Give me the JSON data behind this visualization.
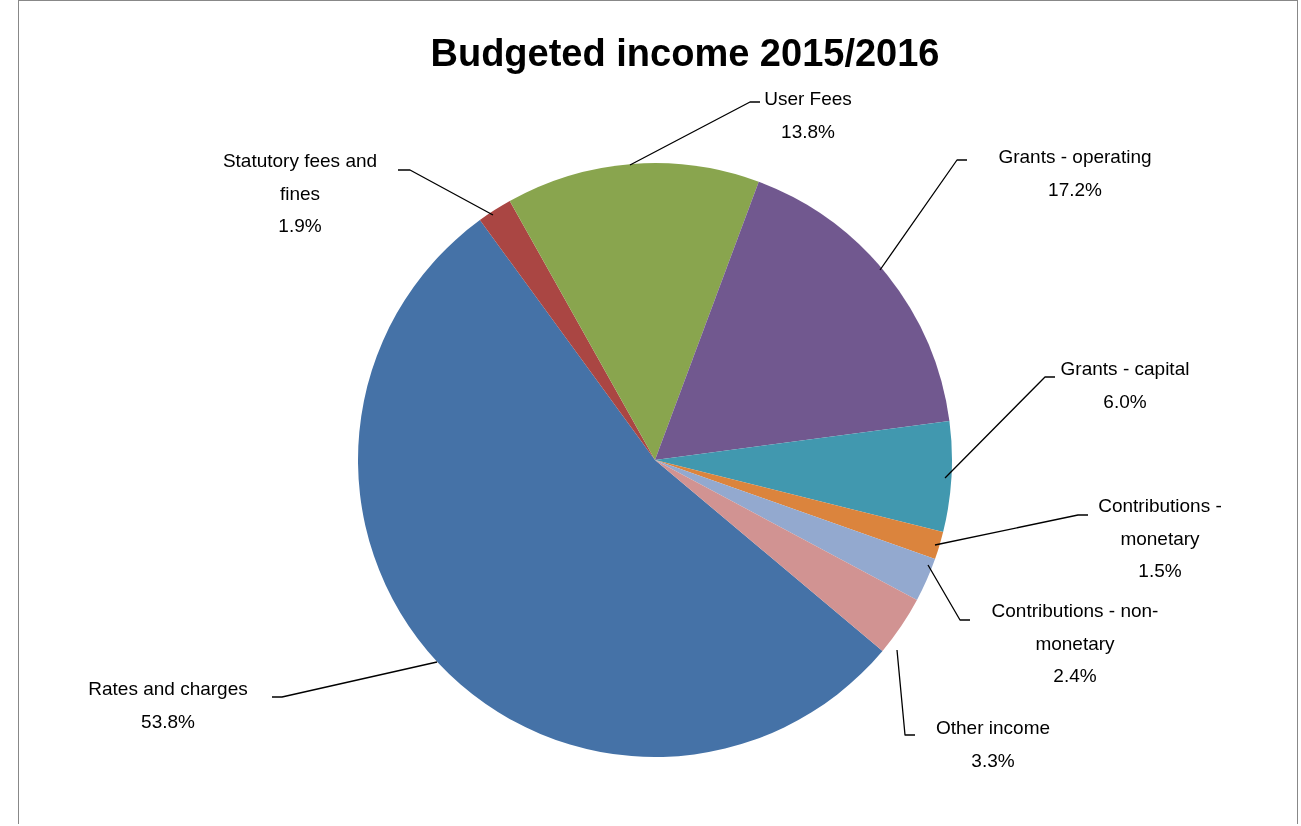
{
  "chart_data": {
    "type": "pie",
    "title": "Budgeted income 2015/2016",
    "categories": [
      "Rates and charges",
      "Statutory fees and fines",
      "User Fees",
      "Grants - operating",
      "Grants - capital",
      "Contributions - monetary",
      "Contributions - non-monetary",
      "Other income"
    ],
    "values": [
      53.8,
      1.9,
      13.8,
      17.2,
      6.0,
      1.5,
      2.4,
      3.3
    ],
    "value_labels": [
      "53.8%",
      "1.9%",
      "13.8%",
      "17.2%",
      "6.0%",
      "1.5%",
      "2.4%",
      "3.3%"
    ],
    "colors": [
      "#4572a7",
      "#aa4643",
      "#89a54e",
      "#71588f",
      "#4198af",
      "#db843d",
      "#93a9cf",
      "#d19392"
    ],
    "legend": false
  }
}
